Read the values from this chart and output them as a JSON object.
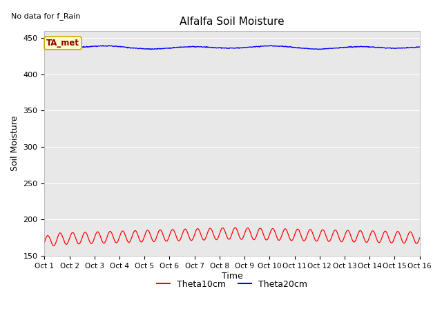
{
  "title": "Alfalfa Soil Moisture",
  "no_data_text": "No data for f_Rain",
  "ylabel": "Soil Moisture",
  "xlabel": "Time",
  "ylim": [
    150,
    460
  ],
  "yticks": [
    150,
    200,
    250,
    300,
    350,
    400,
    450
  ],
  "xlim": [
    0,
    15
  ],
  "xtick_labels": [
    "Oct 1",
    "Oct 2",
    "Oct 3",
    "Oct 4",
    "Oct 5",
    "Oct 6",
    "Oct 7",
    "Oct 8",
    "Oct 9",
    "Oct 10",
    "Oct 11",
    "Oct 12",
    "Oct 13",
    "Oct 14",
    "Oct 15",
    "Oct 16"
  ],
  "bg_color": "#e8e8e8",
  "legend_label1": "Theta10cm",
  "legend_label2": "Theta20cm",
  "color1": "#ff0000",
  "color2": "#0000ff",
  "ta_met_label": "TA_met",
  "ta_met_bg": "#ffffcc",
  "ta_met_border": "#ccaa00",
  "theta10_base": 173,
  "theta10_amplitude": 8,
  "theta10_freq": 2,
  "theta20_base": 437,
  "theta20_amplitude": 2,
  "n_points": 720
}
